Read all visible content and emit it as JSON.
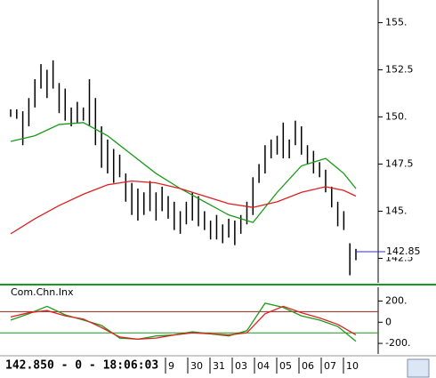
{
  "chart_data": [
    {
      "type": "ohlc",
      "color": "#000000",
      "high": [
        150.4,
        150.4,
        150.3,
        151.0,
        152.0,
        152.8,
        152.5,
        153.0,
        151.8,
        151.5,
        150.5,
        150.8,
        150.5,
        152.0,
        151.0,
        149.5,
        148.8,
        148.3,
        148.0,
        147.0,
        146.5,
        146.2,
        146.0,
        146.6,
        146.0,
        146.3,
        145.8,
        145.5,
        145.0,
        145.5,
        146.0,
        145.8,
        145.0,
        144.5,
        144.8,
        144.3,
        144.6,
        144.5,
        144.8,
        145.5,
        146.8,
        147.5,
        148.5,
        148.8,
        149.0,
        149.7,
        148.8,
        149.8,
        149.5,
        148.5,
        148.2,
        147.6,
        147.2,
        146.3,
        145.5,
        145.0,
        143.3,
        143.0
      ],
      "low": [
        150.0,
        149.9,
        148.5,
        149.5,
        150.5,
        151.5,
        151.0,
        151.5,
        150.2,
        149.8,
        149.5,
        149.7,
        149.8,
        149.5,
        148.5,
        147.3,
        147.0,
        146.5,
        146.8,
        145.5,
        144.8,
        144.5,
        144.8,
        145.0,
        144.5,
        145.0,
        144.6,
        144.0,
        143.8,
        144.3,
        144.5,
        144.2,
        144.0,
        143.5,
        143.5,
        143.3,
        143.6,
        143.2,
        143.8,
        144.3,
        144.8,
        146.5,
        147.0,
        147.8,
        148.0,
        147.8,
        147.8,
        148.5,
        148.0,
        147.5,
        147.0,
        146.8,
        146.0,
        145.2,
        144.2,
        144.0,
        141.6,
        142.4
      ],
      "ma_x": [
        1,
        5,
        9,
        13,
        17,
        21,
        25,
        29,
        33,
        37,
        41,
        45,
        49,
        53,
        56,
        58
      ],
      "series": [
        {
          "color": "#1a9a1a",
          "values": [
            148.7,
            149.0,
            149.6,
            149.7,
            149.0,
            148.0,
            147.0,
            146.2,
            145.5,
            144.8,
            144.4,
            146.0,
            147.4,
            147.8,
            147.0,
            146.2
          ]
        },
        {
          "color": "#e02020",
          "values": [
            143.8,
            144.6,
            145.3,
            145.9,
            146.4,
            146.6,
            146.5,
            146.2,
            145.8,
            145.4,
            145.2,
            145.5,
            146.0,
            146.3,
            146.1,
            145.8
          ]
        }
      ],
      "last": 142.85,
      "last_label": "142.85",
      "last_color": "#3030c0",
      "ylim": [
        141.2,
        156.2
      ],
      "yticks": [
        {
          "value": 155,
          "label": "155."
        },
        152.5,
        {
          "value": 150,
          "label": "150."
        },
        147.5,
        {
          "value": 145,
          "label": "145."
        },
        142.5
      ]
    },
    {
      "type": "indicator",
      "title": "Com.Chn.Inx",
      "x": [
        1,
        4,
        7,
        10,
        13,
        16,
        19,
        22,
        25,
        28,
        31,
        34,
        37,
        40,
        43,
        46,
        49,
        52,
        55,
        58
      ],
      "series": [
        {
          "color": "#1a9a1a",
          "values": [
            20,
            80,
            150,
            70,
            20,
            -30,
            -150,
            -160,
            -130,
            -120,
            -90,
            -110,
            -130,
            -80,
            180,
            140,
            60,
            20,
            -40,
            -180
          ]
        },
        {
          "color": "#e02020",
          "values": [
            50,
            90,
            110,
            60,
            30,
            -50,
            -140,
            -160,
            -150,
            -120,
            -100,
            -110,
            -120,
            -100,
            80,
            150,
            90,
            40,
            -20,
            -120
          ]
        }
      ],
      "levels": [
        {
          "value": 100,
          "color": "#a02020"
        },
        {
          "value": -100,
          "color": "#1a9a1a"
        }
      ],
      "ylim": [
        -300,
        330
      ],
      "yticks": [
        {
          "value": 200,
          "label": "200."
        },
        0,
        {
          "value": -200,
          "label": "-200."
        }
      ]
    },
    {
      "type": "footer",
      "status": "142.850 - 0 - 18:06:03",
      "dates": [
        "9",
        "30",
        "31",
        "03",
        "04",
        "05",
        "06",
        "07",
        "10"
      ]
    }
  ]
}
